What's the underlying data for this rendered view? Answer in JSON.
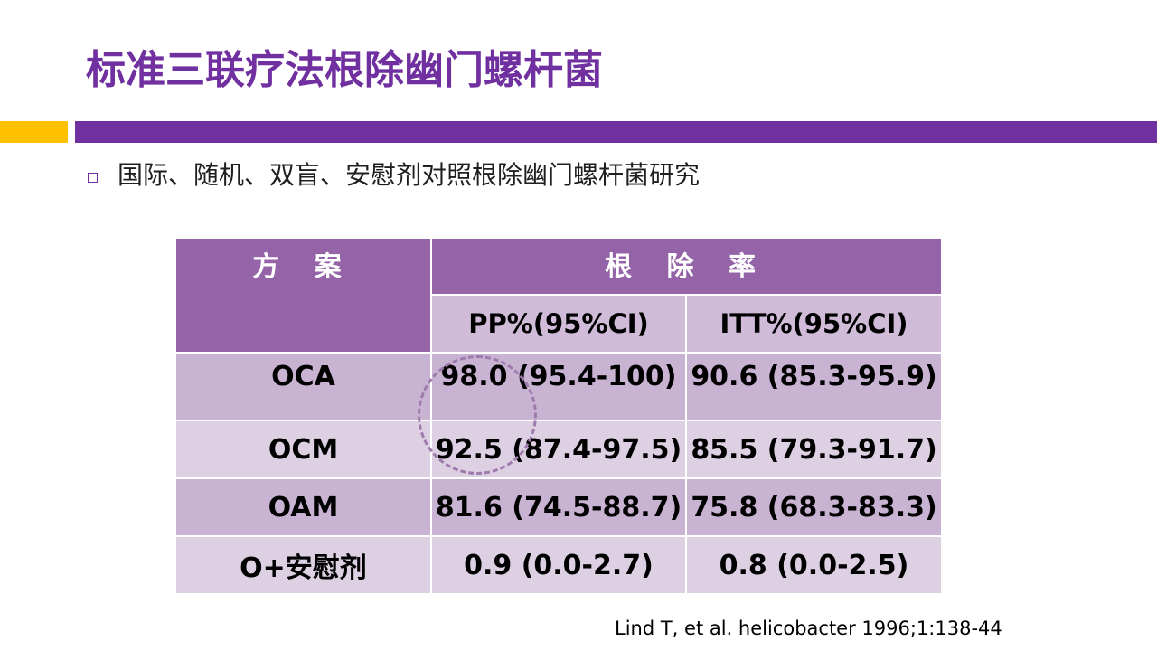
{
  "slide": {
    "title": "标准三联疗法根除幽门螺杆菌",
    "bullet": "国际、随机、双盲、安慰剂对照根除幽门螺杆菌研究",
    "citation": "Lind  T, et al. helicobacter 1996;1:138-44"
  },
  "table": {
    "header_regimen": "方 案",
    "header_eradication": "根 除 率",
    "sub_pp": "PP%(95%CI)",
    "sub_itt": "ITT%(95%CI)",
    "rows": [
      {
        "regimen": "OCA",
        "pp": "98.0 (95.4-100)",
        "itt": "90.6 (85.3-95.9)"
      },
      {
        "regimen": "OCM",
        "pp": "92.5 (87.4-97.5)",
        "itt": "85.5 (79.3-91.7)"
      },
      {
        "regimen": "OAM",
        "pp": "81.6 (74.5-88.7)",
        "itt": "75.8 (68.3-83.3)"
      },
      {
        "regimen": "O+安慰剂",
        "pp": "0.9 (0.0-2.7)",
        "itt": "0.8 (0.0-2.5)"
      }
    ]
  },
  "colors": {
    "title": "#7030a0",
    "accent_bar": "#ffc000",
    "header": "#9564a8",
    "row_dark": "#c9b3d2",
    "row_light": "#ddd0e3"
  }
}
